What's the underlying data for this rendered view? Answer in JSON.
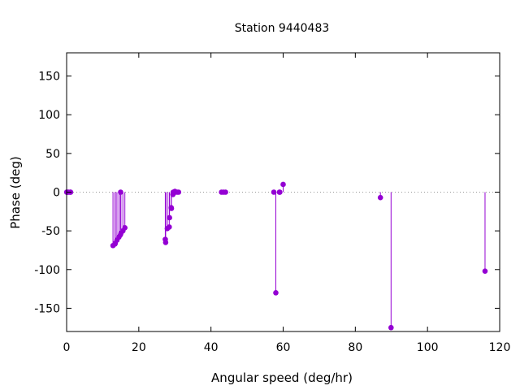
{
  "chart_data": {
    "type": "scatter",
    "style": "impulses-with-points",
    "title": "Station 9440483",
    "xlabel": "Angular speed (deg/hr)",
    "ylabel": "Phase (deg)",
    "xlim": [
      0,
      120
    ],
    "ylim": [
      -180,
      180
    ],
    "xticks": [
      0,
      20,
      40,
      60,
      80,
      100,
      120
    ],
    "yticks": [
      -150,
      -100,
      -50,
      0,
      50,
      100,
      150
    ],
    "grid": false,
    "zero_line": "dotted",
    "legend": "none",
    "series": [
      {
        "color": "#9400d3",
        "points": [
          {
            "x": 0.04,
            "y": 0
          },
          {
            "x": 0.08,
            "y": 0
          },
          {
            "x": 0.14,
            "y": 0
          },
          {
            "x": 0.55,
            "y": 0
          },
          {
            "x": 1.02,
            "y": 0
          },
          {
            "x": 1.1,
            "y": 0
          },
          {
            "x": 12.85,
            "y": -69
          },
          {
            "x": 13.4,
            "y": -67
          },
          {
            "x": 13.47,
            "y": -66
          },
          {
            "x": 13.94,
            "y": -62
          },
          {
            "x": 14.5,
            "y": -58
          },
          {
            "x": 14.92,
            "y": -55
          },
          {
            "x": 14.96,
            "y": 0
          },
          {
            "x": 15.04,
            "y": -53
          },
          {
            "x": 15.59,
            "y": -50
          },
          {
            "x": 16.14,
            "y": -46
          },
          {
            "x": 27.34,
            "y": -61
          },
          {
            "x": 27.44,
            "y": -65
          },
          {
            "x": 27.9,
            "y": -47
          },
          {
            "x": 28.44,
            "y": -45
          },
          {
            "x": 28.51,
            "y": -33
          },
          {
            "x": 28.98,
            "y": -20
          },
          {
            "x": 29.04,
            "y": -21
          },
          {
            "x": 29.46,
            "y": -3
          },
          {
            "x": 29.53,
            "y": 0
          },
          {
            "x": 29.96,
            "y": 0
          },
          {
            "x": 30.0,
            "y": 1
          },
          {
            "x": 30.08,
            "y": 0
          },
          {
            "x": 30.63,
            "y": 0
          },
          {
            "x": 31.02,
            "y": 0
          },
          {
            "x": 42.93,
            "y": 0
          },
          {
            "x": 43.48,
            "y": 0
          },
          {
            "x": 44.03,
            "y": 0
          },
          {
            "x": 57.42,
            "y": 0
          },
          {
            "x": 57.97,
            "y": -130
          },
          {
            "x": 58.98,
            "y": 0
          },
          {
            "x": 59.07,
            "y": 0
          },
          {
            "x": 60.0,
            "y": 10
          },
          {
            "x": 86.95,
            "y": -7
          },
          {
            "x": 89.9,
            "y": -175
          },
          {
            "x": 115.94,
            "y": -102
          }
        ]
      }
    ]
  }
}
